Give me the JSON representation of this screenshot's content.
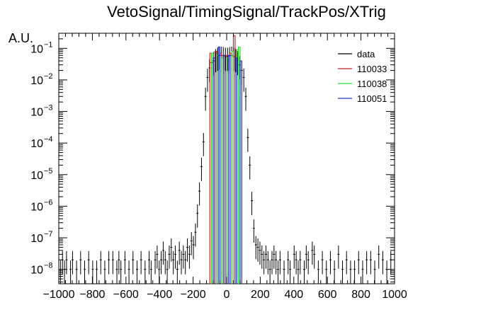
{
  "chart_data": {
    "type": "histogram",
    "title": "VetoSignal/TimingSignal/TrackPos/XTrig",
    "ylabel": "A.U.",
    "xlabel": "",
    "xlim": [
      -1000,
      1000
    ],
    "ylim": [
      3.5e-09,
      0.3
    ],
    "yscale": "log",
    "grid": false,
    "legend_position": "top-right",
    "x_tick_labels": [
      "−1000",
      "−800",
      "−600",
      "−400",
      "−200",
      "0",
      "200",
      "400",
      "600",
      "800",
      "1000"
    ],
    "y_tick_labels": [
      {
        "base": "10",
        "exp": "−8",
        "value": 1e-08
      },
      {
        "base": "10",
        "exp": "−7",
        "value": 1e-07
      },
      {
        "base": "10",
        "exp": "−6",
        "value": 1e-06
      },
      {
        "base": "10",
        "exp": "−5",
        "value": 1e-05
      },
      {
        "base": "10",
        "exp": "−4",
        "value": 0.0001
      },
      {
        "base": "10",
        "exp": "−3",
        "value": 0.001
      },
      {
        "base": "10",
        "exp": "−2",
        "value": 0.01
      },
      {
        "base": "10",
        "exp": "−1",
        "value": 0.1
      }
    ],
    "series": [
      {
        "name": "data",
        "color": "#000000",
        "style": "points-with-errors",
        "points": [
          [
            -990,
            1e-08
          ],
          [
            -978,
            2e-08
          ],
          [
            -966,
            1e-08
          ],
          [
            -954,
            2e-08
          ],
          [
            -930,
            1e-08
          ],
          [
            -918,
            2e-08
          ],
          [
            -894,
            1e-08
          ],
          [
            -870,
            2e-08
          ],
          [
            -846,
            1e-08
          ],
          [
            -822,
            2e-08
          ],
          [
            -798,
            1e-08
          ],
          [
            -774,
            1e-08
          ],
          [
            -750,
            2e-08
          ],
          [
            -726,
            1e-08
          ],
          [
            -702,
            2e-08
          ],
          [
            -678,
            2e-08
          ],
          [
            -654,
            1e-08
          ],
          [
            -642,
            2e-08
          ],
          [
            -630,
            1e-08
          ],
          [
            -606,
            2e-08
          ],
          [
            -582,
            1e-08
          ],
          [
            -558,
            2e-08
          ],
          [
            -534,
            1e-08
          ],
          [
            -510,
            2e-08
          ],
          [
            -486,
            1e-08
          ],
          [
            -462,
            2e-08
          ],
          [
            -450,
            1e-08
          ],
          [
            -426,
            2e-08
          ],
          [
            -414,
            3e-08
          ],
          [
            -402,
            1e-08
          ],
          [
            -390,
            2e-08
          ],
          [
            -378,
            4e-08
          ],
          [
            -366,
            2e-08
          ],
          [
            -354,
            1e-08
          ],
          [
            -342,
            3e-08
          ],
          [
            -330,
            5e-08
          ],
          [
            -318,
            2e-08
          ],
          [
            -306,
            3e-08
          ],
          [
            -294,
            1e-08
          ],
          [
            -282,
            4e-08
          ],
          [
            -270,
            2e-08
          ],
          [
            -258,
            3e-08
          ],
          [
            -246,
            2e-08
          ],
          [
            -234,
            5e-08
          ],
          [
            -222,
            3e-08
          ],
          [
            -210,
            8e-08
          ],
          [
            -198,
            6e-08
          ],
          [
            -186,
            1.5e-07
          ],
          [
            -174,
            6e-07
          ],
          [
            -162,
            3e-06
          ],
          [
            -150,
            1.8e-05
          ],
          [
            -138,
            0.00011
          ],
          [
            -126,
            0.003
          ],
          [
            -114,
            0.012
          ],
          [
            -102,
            0.024
          ],
          [
            -90,
            0.035
          ],
          [
            -78,
            0.04
          ],
          [
            -66,
            0.05
          ],
          [
            -54,
            0.055
          ],
          [
            -42,
            0.06
          ],
          [
            -30,
            0.06
          ],
          [
            -18,
            0.058
          ],
          [
            -6,
            0.055
          ],
          [
            6,
            0.055
          ],
          [
            18,
            0.058
          ],
          [
            30,
            0.06
          ],
          [
            42,
            0.055
          ],
          [
            54,
            0.05
          ],
          [
            66,
            0.04
          ],
          [
            78,
            0.03
          ],
          [
            90,
            0.02
          ],
          [
            102,
            0.012
          ],
          [
            114,
            0.003
          ],
          [
            126,
            0.00015
          ],
          [
            138,
            2e-05
          ],
          [
            150,
            1.5e-06
          ],
          [
            162,
            2e-07
          ],
          [
            174,
            6e-08
          ],
          [
            186,
            5e-08
          ],
          [
            198,
            4e-08
          ],
          [
            210,
            3e-08
          ],
          [
            222,
            2e-08
          ],
          [
            234,
            3e-08
          ],
          [
            246,
            2e-08
          ],
          [
            258,
            1e-08
          ],
          [
            270,
            2e-08
          ],
          [
            282,
            3e-08
          ],
          [
            294,
            2e-08
          ],
          [
            306,
            1e-08
          ],
          [
            318,
            2e-08
          ],
          [
            342,
            1e-08
          ],
          [
            366,
            2e-08
          ],
          [
            378,
            1e-08
          ],
          [
            402,
            3e-08
          ],
          [
            414,
            2e-08
          ],
          [
            426,
            1e-08
          ],
          [
            438,
            2e-08
          ],
          [
            462,
            1e-08
          ],
          [
            474,
            3e-08
          ],
          [
            486,
            2e-08
          ],
          [
            510,
            4e-08
          ],
          [
            522,
            3e-08
          ],
          [
            546,
            1e-08
          ],
          [
            570,
            2e-08
          ],
          [
            594,
            1e-08
          ],
          [
            618,
            2e-08
          ],
          [
            642,
            1e-08
          ],
          [
            666,
            3e-08
          ],
          [
            690,
            1e-08
          ],
          [
            714,
            2e-08
          ],
          [
            738,
            1e-08
          ],
          [
            762,
            1e-08
          ],
          [
            786,
            2e-08
          ],
          [
            810,
            1e-08
          ],
          [
            834,
            2e-08
          ],
          [
            858,
            2e-08
          ],
          [
            882,
            1e-08
          ],
          [
            906,
            3e-08
          ],
          [
            930,
            2e-08
          ],
          [
            954,
            1e-08
          ],
          [
            978,
            2e-08
          ]
        ]
      },
      {
        "name": "110033",
        "color": "#cc2222",
        "style": "step",
        "bins": [
          [
            -100,
            -90,
            0.07
          ],
          [
            -70,
            -60,
            0.08
          ],
          [
            -40,
            -30,
            0.07
          ],
          [
            -10,
            0,
            0.06
          ],
          [
            20,
            30,
            0.07
          ],
          [
            40,
            50,
            0.25
          ],
          [
            60,
            70,
            0.08
          ]
        ]
      },
      {
        "name": "110038",
        "color": "#33dd33",
        "style": "step",
        "bins": [
          [
            -90,
            -80,
            0.07
          ],
          [
            -60,
            -50,
            0.06
          ],
          [
            -30,
            -20,
            0.05
          ],
          [
            0,
            10,
            0.05
          ],
          [
            30,
            40,
            0.08
          ],
          [
            60,
            70,
            0.09
          ],
          [
            70,
            80,
            0.11
          ]
        ]
      },
      {
        "name": "110051",
        "color": "#2233cc",
        "style": "step",
        "bins": [
          [
            -80,
            -70,
            0.05
          ],
          [
            -50,
            -40,
            0.11
          ],
          [
            -20,
            -10,
            0.06
          ],
          [
            10,
            20,
            0.06
          ],
          [
            50,
            60,
            0.05
          ],
          [
            80,
            90,
            0.04
          ]
        ]
      }
    ]
  }
}
